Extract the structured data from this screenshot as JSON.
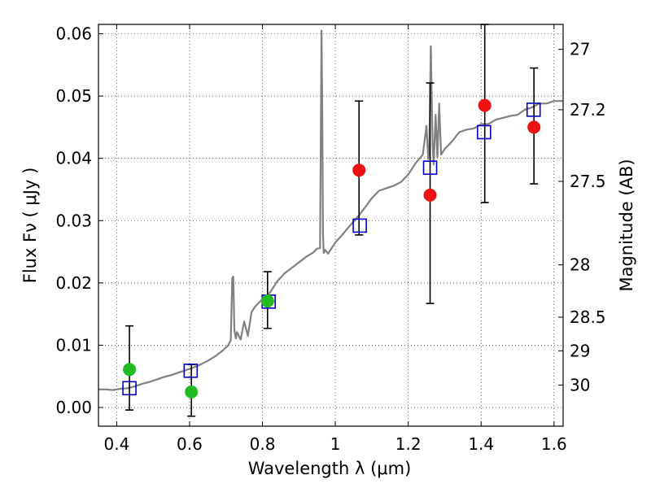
{
  "chart_data": {
    "type": "scatter",
    "xlabel": "Wavelength  λ (μm)",
    "ylabel": "Flux  Fν  ( μJy )",
    "y2label": "Magnitude (AB)",
    "xlim": [
      0.35,
      1.625
    ],
    "ylim": [
      -0.003,
      0.0615
    ],
    "grid": true,
    "xticks": [
      0.4,
      0.6,
      0.8,
      1.0,
      1.2,
      1.4,
      1.6
    ],
    "xtick_labels": [
      "0.4",
      "0.6",
      "0.8",
      "1",
      "1.2",
      "1.4",
      "1.6"
    ],
    "yticks": [
      0.0,
      0.01,
      0.02,
      0.03,
      0.04,
      0.05,
      0.06
    ],
    "ytick_labels": [
      "0.00",
      "0.01",
      "0.02",
      "0.03",
      "0.04",
      "0.05",
      "0.06"
    ],
    "magnitude_ticks": [
      {
        "label": "27",
        "flux": 0.0575
      },
      {
        "label": "27.2",
        "flux": 0.0478
      },
      {
        "label": "27.5",
        "flux": 0.0363
      },
      {
        "label": "28",
        "flux": 0.0229
      },
      {
        "label": "28.5",
        "flux": 0.0145
      },
      {
        "label": "29",
        "flux": 0.0091
      },
      {
        "label": "30",
        "flux": 0.0036
      }
    ],
    "series": [
      {
        "kind": "line",
        "color": "#808080",
        "x": [
          0.35,
          0.37,
          0.39,
          0.41,
          0.43,
          0.45,
          0.47,
          0.49,
          0.51,
          0.53,
          0.55,
          0.57,
          0.59,
          0.61,
          0.63,
          0.65,
          0.67,
          0.69,
          0.705,
          0.713,
          0.717,
          0.72,
          0.723,
          0.727,
          0.73,
          0.74,
          0.75,
          0.76,
          0.77,
          0.78,
          0.8,
          0.82,
          0.84,
          0.86,
          0.88,
          0.9,
          0.92,
          0.94,
          0.95,
          0.958,
          0.962,
          0.964,
          0.966,
          0.968,
          0.972,
          0.98,
          1.0,
          1.02,
          1.04,
          1.06,
          1.08,
          1.1,
          1.12,
          1.14,
          1.16,
          1.18,
          1.2,
          1.22,
          1.24,
          1.25,
          1.255,
          1.258,
          1.26,
          1.262,
          1.265,
          1.267,
          1.27,
          1.275,
          1.28,
          1.285,
          1.29,
          1.3,
          1.32,
          1.34,
          1.36,
          1.38,
          1.4,
          1.42,
          1.44,
          1.46,
          1.48,
          1.5,
          1.52,
          1.54,
          1.56,
          1.58,
          1.6,
          1.625
        ],
        "y": [
          0.0029,
          0.0029,
          0.0028,
          0.003,
          0.0031,
          0.0034,
          0.0038,
          0.0041,
          0.0045,
          0.0049,
          0.0052,
          0.0056,
          0.006,
          0.0064,
          0.0069,
          0.0075,
          0.0082,
          0.0091,
          0.0099,
          0.0108,
          0.0208,
          0.021,
          0.0125,
          0.0111,
          0.0121,
          0.0109,
          0.0138,
          0.0115,
          0.0153,
          0.0162,
          0.0174,
          0.0184,
          0.0202,
          0.0215,
          0.0224,
          0.0233,
          0.0242,
          0.0249,
          0.0255,
          0.0256,
          0.0605,
          0.048,
          0.028,
          0.0248,
          0.0253,
          0.0247,
          0.0265,
          0.0278,
          0.0292,
          0.0305,
          0.032,
          0.0336,
          0.0348,
          0.0352,
          0.0356,
          0.0362,
          0.0374,
          0.0392,
          0.0406,
          0.0452,
          0.0399,
          0.0418,
          0.0495,
          0.058,
          0.048,
          0.042,
          0.039,
          0.047,
          0.0402,
          0.0488,
          0.0406,
          0.0415,
          0.0427,
          0.0442,
          0.0446,
          0.0448,
          0.0455,
          0.0455,
          0.0462,
          0.0465,
          0.0468,
          0.047,
          0.0478,
          0.0482,
          0.0488,
          0.0488,
          0.0492,
          0.0492
        ]
      },
      {
        "kind": "open-square",
        "color": "#0000cc",
        "x": [
          0.435,
          0.603,
          0.817,
          1.067,
          1.26,
          1.408,
          1.544
        ],
        "y": [
          0.0031,
          0.0059,
          0.017,
          0.0292,
          0.0385,
          0.0442,
          0.0478
        ]
      },
      {
        "kind": "filled-circle",
        "color": "#22bb22",
        "x": [
          0.435,
          0.605,
          0.814
        ],
        "y": [
          0.0061,
          0.0025,
          0.0171
        ],
        "err_low": [
          -0.0004,
          -0.0014,
          0.0127
        ],
        "err_high": [
          0.0131,
          0.0069,
          0.0218
        ]
      },
      {
        "kind": "filled-circle",
        "color": "#ee1111",
        "x": [
          1.065,
          1.26,
          1.41,
          1.545
        ],
        "y": [
          0.0381,
          0.0341,
          0.0485,
          0.045
        ],
        "err_low": [
          0.0277,
          0.0167,
          0.0329,
          0.0359
        ],
        "err_high": [
          0.0492,
          0.0521,
          0.0615,
          0.0545
        ]
      }
    ]
  }
}
